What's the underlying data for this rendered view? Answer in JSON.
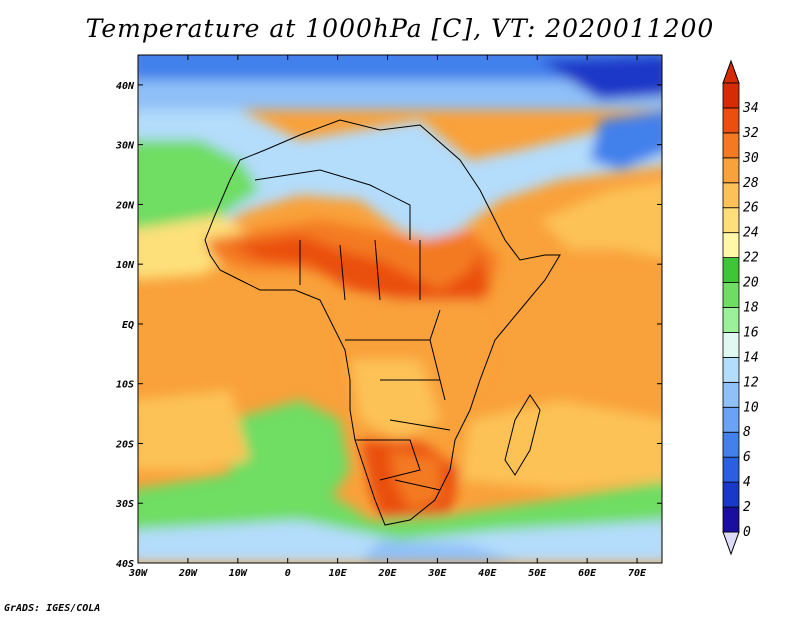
{
  "title": "Temperature at 1000hPa [C], VT: 2020011200",
  "footer": "GrADS: IGES/COLA",
  "map": {
    "lon_range": [
      -30,
      75
    ],
    "lat_range": [
      -40,
      45
    ],
    "lon_ticks": [
      "30W",
      "20W",
      "10W",
      "0",
      "10E",
      "20E",
      "30E",
      "40E",
      "50E",
      "60E",
      "70E"
    ],
    "lat_ticks": [
      "40S",
      "30S",
      "20S",
      "10S",
      "EQ",
      "10N",
      "20N",
      "30N",
      "40N"
    ]
  },
  "colorbar": {
    "levels": [
      "0",
      "2",
      "4",
      "6",
      "8",
      "10",
      "12",
      "14",
      "16",
      "18",
      "20",
      "22",
      "24",
      "26",
      "28",
      "30",
      "32",
      "34"
    ],
    "colors": [
      "#1a0ea0",
      "#1b39c8",
      "#2a5fe0",
      "#4280ec",
      "#6aa2f4",
      "#8fc0f8",
      "#b4dcfb",
      "#e0f7f2",
      "#9cf09a",
      "#6fdd64",
      "#3ec638",
      "#fff8a8",
      "#fde07a",
      "#fcc257",
      "#f9a13a",
      "#f47a22",
      "#ea4f10",
      "#d62c06"
    ],
    "low_color": "#dcdcfa",
    "high_color": "#d62c06"
  },
  "colors": {
    "ocean_warm": "#f6b04a",
    "ocean_subtrop": "#fde07a",
    "ocean_green": "#6fdd64",
    "north_cool": "#6aa2f4",
    "land_hot": "#ea4f10",
    "land_warm": "#f9a13a"
  }
}
